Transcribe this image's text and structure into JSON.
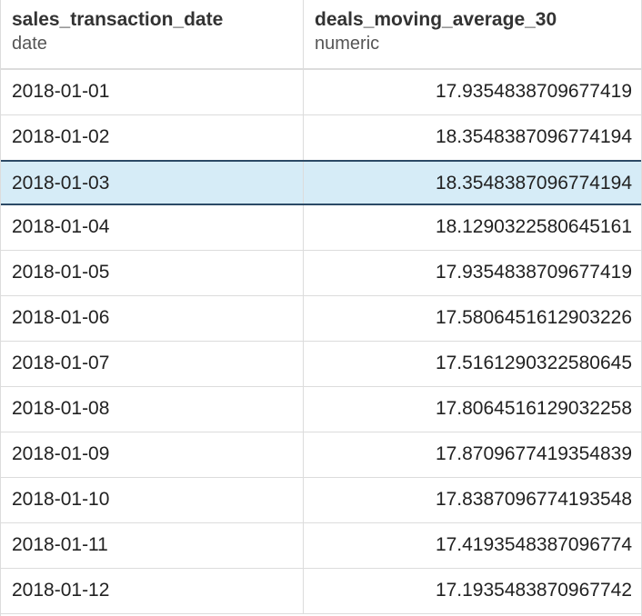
{
  "columns": [
    {
      "name": "sales_transaction_date",
      "type": "date"
    },
    {
      "name": "deals_moving_average_30",
      "type": "numeric"
    }
  ],
  "rows": [
    {
      "date": "2018-01-01",
      "value": "17.9354838709677419",
      "selected": false
    },
    {
      "date": "2018-01-02",
      "value": "18.3548387096774194",
      "selected": false
    },
    {
      "date": "2018-01-03",
      "value": "18.3548387096774194",
      "selected": true
    },
    {
      "date": "2018-01-04",
      "value": "18.1290322580645161",
      "selected": false
    },
    {
      "date": "2018-01-05",
      "value": "17.9354838709677419",
      "selected": false
    },
    {
      "date": "2018-01-06",
      "value": "17.5806451612903226",
      "selected": false
    },
    {
      "date": "2018-01-07",
      "value": "17.5161290322580645",
      "selected": false
    },
    {
      "date": "2018-01-08",
      "value": "17.8064516129032258",
      "selected": false
    },
    {
      "date": "2018-01-09",
      "value": "17.8709677419354839",
      "selected": false
    },
    {
      "date": "2018-01-10",
      "value": "17.8387096774193548",
      "selected": false
    },
    {
      "date": "2018-01-11",
      "value": "17.4193548387096774",
      "selected": false
    },
    {
      "date": "2018-01-12",
      "value": "17.1935483870967742",
      "selected": false
    }
  ],
  "colors": {
    "selected_row_bg": "#d6ecf7",
    "selected_row_border": "#2c4a66",
    "grid_line": "#dcdcdc"
  }
}
